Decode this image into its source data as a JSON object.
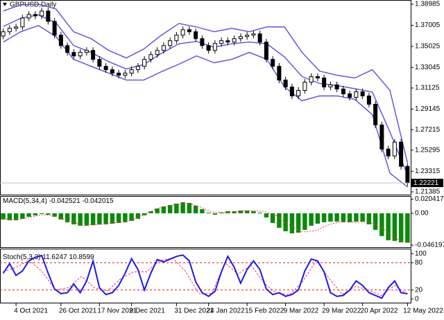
{
  "chart_data": [
    {
      "type": "candlestick",
      "title": "GBPUSD,Daily",
      "categories": [
        null,
        null,
        "4 Oct 2021",
        null,
        null,
        null,
        null,
        null,
        null,
        "26 Oct 2021",
        null,
        null,
        null,
        null,
        null,
        "17 Nov 2021",
        null,
        null,
        null,
        null,
        "9 Dec 2021",
        null,
        null,
        null,
        null,
        null,
        null,
        "31 Dec 2021",
        null,
        null,
        null,
        null,
        "24 Jan 2022",
        null,
        null,
        null,
        null,
        null,
        "15 Feb 2022",
        null,
        null,
        null,
        null,
        null,
        "9 Mar 2022",
        null,
        null,
        null,
        null,
        null,
        "29 Mar 2022",
        null,
        null,
        null,
        null,
        null,
        "20 Apr 2022",
        null,
        null,
        null,
        null,
        null,
        null,
        "12 May 2022"
      ],
      "open": [
        1.36,
        1.364,
        1.3672,
        1.3685,
        1.3769,
        1.3802,
        1.3789,
        1.3834,
        1.3737,
        1.3608,
        1.351,
        1.3446,
        1.3413,
        1.3446,
        1.3465,
        1.3381,
        1.3316,
        1.3284,
        1.3252,
        1.3232,
        1.3252,
        1.3284,
        1.3316,
        1.3381,
        1.3426,
        1.3465,
        1.351,
        1.3556,
        1.3608,
        1.3659,
        1.364,
        1.3575,
        1.351,
        1.3465,
        1.353,
        1.3556,
        1.3543,
        1.3575,
        1.3595,
        1.3608,
        1.362,
        1.3543,
        1.3381,
        1.3316,
        1.3187,
        1.3122,
        1.3038,
        1.309,
        1.3167,
        1.3219,
        1.3206,
        1.3122,
        1.3142,
        1.3103,
        1.3058,
        1.3025,
        1.3077,
        1.3038,
        1.296,
        1.2766,
        1.254,
        1.2475,
        1.2605,
        1.2378
      ],
      "high": [
        1.367,
        1.3702,
        1.3715,
        1.3799,
        1.3832,
        1.3832,
        1.3864,
        1.3864,
        1.3767,
        1.3638,
        1.354,
        1.3476,
        1.3476,
        1.3495,
        1.3495,
        1.3411,
        1.3346,
        1.3314,
        1.3282,
        1.3282,
        1.3314,
        1.3346,
        1.3411,
        1.3456,
        1.3495,
        1.354,
        1.3586,
        1.3638,
        1.3689,
        1.3689,
        1.367,
        1.3605,
        1.354,
        1.356,
        1.3586,
        1.3586,
        1.3605,
        1.3625,
        1.3638,
        1.365,
        1.365,
        1.3573,
        1.3411,
        1.3346,
        1.3217,
        1.3152,
        1.312,
        1.3197,
        1.3249,
        1.3249,
        1.3236,
        1.3172,
        1.3172,
        1.3133,
        1.3088,
        1.3107,
        1.3107,
        1.3068,
        1.299,
        1.2796,
        1.257,
        1.2635,
        1.2635,
        1.2408
      ],
      "low": [
        1.357,
        1.361,
        1.3642,
        1.3655,
        1.3739,
        1.3759,
        1.3759,
        1.3707,
        1.3578,
        1.348,
        1.3416,
        1.3383,
        1.3383,
        1.3416,
        1.3351,
        1.3286,
        1.3254,
        1.3222,
        1.3202,
        1.3202,
        1.3222,
        1.3254,
        1.3286,
        1.3351,
        1.3396,
        1.3435,
        1.348,
        1.3526,
        1.3578,
        1.361,
        1.3545,
        1.348,
        1.3435,
        1.3435,
        1.35,
        1.3513,
        1.3513,
        1.3545,
        1.3565,
        1.3578,
        1.3513,
        1.3351,
        1.3286,
        1.3157,
        1.3092,
        1.3008,
        1.3008,
        1.306,
        1.3137,
        1.3176,
        1.3092,
        1.3092,
        1.3073,
        1.3028,
        1.2995,
        1.2995,
        1.3008,
        1.293,
        1.2736,
        1.251,
        1.2445,
        1.2445,
        1.2348,
        1.2192
      ],
      "close": [
        1.364,
        1.3672,
        1.3685,
        1.3769,
        1.3802,
        1.3789,
        1.3834,
        1.3737,
        1.3608,
        1.351,
        1.3446,
        1.3413,
        1.3446,
        1.3465,
        1.3381,
        1.3316,
        1.3284,
        1.3252,
        1.3232,
        1.3252,
        1.3284,
        1.3316,
        1.3381,
        1.3426,
        1.3465,
        1.351,
        1.3556,
        1.3608,
        1.3659,
        1.364,
        1.3575,
        1.351,
        1.3465,
        1.353,
        1.3556,
        1.3543,
        1.3575,
        1.3595,
        1.3608,
        1.362,
        1.3543,
        1.3381,
        1.3316,
        1.3187,
        1.3122,
        1.3038,
        1.309,
        1.3167,
        1.3219,
        1.3206,
        1.3122,
        1.3142,
        1.3103,
        1.3058,
        1.3025,
        1.3077,
        1.3038,
        1.296,
        1.2766,
        1.254,
        1.2475,
        1.2605,
        1.2378,
        1.2222
      ],
      "bands": {
        "color": "#5a4fe0",
        "upper": [
          1.3834,
          1.3892,
          1.3899,
          1.3853,
          1.364,
          1.3575,
          1.3465,
          1.3394,
          1.3478,
          1.3608,
          1.3717,
          1.3685,
          1.364,
          1.3672,
          1.364,
          1.3685,
          1.3685,
          1.3446,
          1.3271,
          1.3232,
          1.3206,
          1.3284,
          1.309,
          1.2411
        ],
        "middle": [
          1.3689,
          1.3766,
          1.3799,
          1.3724,
          1.3511,
          1.3446,
          1.3359,
          1.3291,
          1.3333,
          1.3437,
          1.3527,
          1.3549,
          1.3495,
          1.3527,
          1.3543,
          1.3527,
          1.3404,
          1.322,
          1.3155,
          1.3135,
          1.3106,
          1.3074,
          1.27,
          1.2298
        ],
        "lower": [
          1.3543,
          1.364,
          1.3698,
          1.3595,
          1.3381,
          1.3316,
          1.3252,
          1.3187,
          1.3187,
          1.3265,
          1.3336,
          1.3413,
          1.3349,
          1.3381,
          1.3446,
          1.3381,
          1.3122,
          1.2993,
          1.3038,
          1.3038,
          1.3006,
          1.2863,
          1.2314,
          1.2184
        ]
      },
      "last_price": 1.22221,
      "ylim": [
        1.2106,
        1.3931
      ],
      "yticks": [
        1.38985,
        1.37005,
        1.35025,
        1.33045,
        1.31125,
        1.29145,
        1.27215,
        1.25295,
        1.23315,
        1.21385
      ]
    },
    {
      "type": "bar",
      "label": "MACD(5,34,4)",
      "color": "#0a8a0a",
      "signal_color": "#ff3060",
      "values": [
        -0.009,
        -0.01,
        -0.01,
        -0.008,
        -0.005,
        -0.003,
        -0.001,
        -0.002,
        -0.005,
        -0.009,
        -0.013,
        -0.016,
        -0.018,
        -0.018,
        -0.017,
        -0.016,
        -0.016,
        -0.015,
        -0.014,
        -0.013,
        -0.011,
        -0.008,
        -0.003,
        0.003,
        0.007,
        0.01,
        0.012,
        0.014,
        0.016,
        0.015,
        0.011,
        0.006,
        0.001,
        -0.002,
        0.001,
        0.003,
        0.003,
        0.004,
        0.004,
        0.003,
        0.001,
        -0.006,
        -0.014,
        -0.021,
        -0.026,
        -0.029,
        -0.028,
        -0.024,
        -0.018,
        -0.015,
        -0.013,
        -0.012,
        -0.012,
        -0.013,
        -0.013,
        -0.012,
        -0.012,
        -0.016,
        -0.024,
        -0.033,
        -0.039,
        -0.04,
        -0.042,
        -0.042521
      ],
      "signal": [
        -0.008,
        -0.01,
        -0.006,
        -0.002,
        -0.004,
        -0.011,
        -0.016,
        -0.017,
        -0.015,
        -0.013,
        -0.009,
        0.0,
        0.008,
        0.012,
        0.015,
        0.01,
        0.002,
        0.001,
        0.003,
        0.004,
        0.003,
        -0.004,
        -0.018,
        -0.027,
        -0.025,
        -0.016,
        -0.012,
        -0.013,
        -0.012,
        -0.02,
        -0.036,
        -0.042015
      ],
      "ylim": [
        -0.0502,
        0.024
      ],
      "yticks": [
        0.020417,
        {
          "value": 0,
          "label": "0.00"
        },
        -0.046197
      ]
    },
    {
      "type": "line",
      "label": "Stoch(5,3,3)",
      "color": "#1a1ae6",
      "signal_color": "#ff3060",
      "levels": [
        80,
        20
      ],
      "level_color": "#e02020",
      "values": [
        57,
        78,
        52,
        62,
        84,
        92,
        96,
        57,
        22,
        12,
        14,
        33,
        14,
        40,
        84,
        25,
        10,
        14,
        30,
        57,
        89,
        65,
        20,
        57,
        87,
        82,
        88,
        94,
        97,
        84,
        38,
        14,
        6,
        17,
        60,
        94,
        70,
        35,
        65,
        84,
        65,
        22,
        10,
        14,
        6,
        10,
        20,
        62,
        88,
        84,
        60,
        14,
        6,
        8,
        20,
        40,
        30,
        14,
        8,
        2,
        25,
        40,
        14,
        11.6247
      ],
      "signal": [
        60,
        70,
        85,
        60,
        20,
        25,
        50,
        25,
        18,
        45,
        60,
        60,
        85,
        90,
        60,
        12,
        12,
        80,
        55,
        75,
        35,
        12,
        10,
        40,
        85,
        45,
        10,
        28,
        20,
        8,
        30,
        10.8599
      ],
      "ylim": [
        -9.5,
        109.5
      ],
      "yticks": [
        100,
        80,
        20,
        0
      ]
    }
  ]
}
